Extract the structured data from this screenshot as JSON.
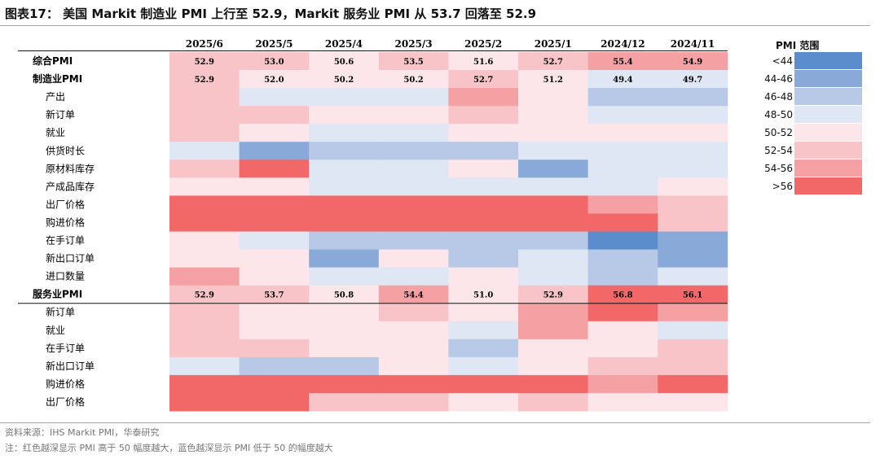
{
  "title": "图表17：  美国 Markit 制造业 PMI 上行至 52.9，Markit 服务业 PMI 从 53.7 回落至 52.9",
  "legend": {
    "title": "PMI 范围",
    "items": [
      {
        "label": "<44",
        "color": "#5b8ccb"
      },
      {
        "label": "44-46",
        "color": "#89a9d9"
      },
      {
        "label": "46-48",
        "color": "#b7c9e6"
      },
      {
        "label": "48-50",
        "color": "#dfe6f4"
      },
      {
        "label": "50-52",
        "color": "#fde6ea"
      },
      {
        "label": "52-54",
        "color": "#f9c4c8"
      },
      {
        "label": "54-56",
        "color": "#f5a1a4"
      },
      {
        "label": ">56",
        "color": "#f26868"
      }
    ]
  },
  "chart_data": {
    "type": "heatmap",
    "columns": [
      "2025/6",
      "2025/5",
      "2025/4",
      "2025/3",
      "2025/2",
      "2025/1",
      "2024/12",
      "2024/11"
    ],
    "rows": [
      {
        "label": "综合PMI",
        "bold": true,
        "values": [
          "52.9",
          "53.0",
          "50.6",
          "53.5",
          "51.6",
          "52.7",
          "55.4",
          "54.9"
        ],
        "bands": [
          5,
          5,
          4,
          5,
          4,
          5,
          6,
          6
        ]
      },
      {
        "label": "制造业PMI",
        "bold": true,
        "values": [
          "52.9",
          "52.0",
          "50.2",
          "50.2",
          "52.7",
          "51.2",
          "49.4",
          "49.7"
        ],
        "bands": [
          5,
          4,
          4,
          4,
          5,
          4,
          3,
          3
        ]
      },
      {
        "label": "产出",
        "bold": false,
        "values": [],
        "bands": [
          5,
          3,
          3,
          3,
          6,
          4,
          2,
          2
        ]
      },
      {
        "label": "新订单",
        "bold": false,
        "values": [],
        "bands": [
          5,
          5,
          4,
          4,
          5,
          4,
          3,
          3
        ]
      },
      {
        "label": "就业",
        "bold": false,
        "values": [],
        "bands": [
          5,
          4,
          3,
          3,
          4,
          4,
          4,
          4
        ]
      },
      {
        "label": "供货时长",
        "bold": false,
        "values": [],
        "bands": [
          3,
          1,
          2,
          2,
          2,
          3,
          3,
          3
        ]
      },
      {
        "label": "原材料库存",
        "bold": false,
        "values": [],
        "bands": [
          5,
          7,
          3,
          3,
          4,
          1,
          3,
          3
        ]
      },
      {
        "label": "产成品库存",
        "bold": false,
        "values": [],
        "bands": [
          4,
          4,
          3,
          3,
          3,
          3,
          3,
          4
        ]
      },
      {
        "label": "出厂价格",
        "bold": false,
        "values": [],
        "bands": [
          7,
          7,
          7,
          7,
          7,
          7,
          6,
          5
        ]
      },
      {
        "label": "购进价格",
        "bold": false,
        "values": [],
        "bands": [
          7,
          7,
          7,
          7,
          7,
          7,
          7,
          5
        ]
      },
      {
        "label": "在手订单",
        "bold": false,
        "values": [],
        "bands": [
          4,
          3,
          2,
          2,
          2,
          2,
          0,
          1
        ]
      },
      {
        "label": "新出口订单",
        "bold": false,
        "values": [],
        "bands": [
          4,
          4,
          1,
          4,
          2,
          3,
          2,
          1
        ]
      },
      {
        "label": "进口数量",
        "bold": false,
        "values": [],
        "bands": [
          6,
          4,
          3,
          3,
          4,
          3,
          2,
          3
        ]
      },
      {
        "label": "服务业PMI",
        "bold": true,
        "values": [
          "52.9",
          "53.7",
          "50.8",
          "54.4",
          "51.0",
          "52.9",
          "56.8",
          "56.1"
        ],
        "bands": [
          5,
          5,
          4,
          6,
          4,
          5,
          7,
          7
        ]
      },
      {
        "label": "新订单",
        "bold": false,
        "values": [],
        "bands": [
          5,
          4,
          4,
          5,
          4,
          6,
          7,
          6
        ]
      },
      {
        "label": "就业",
        "bold": false,
        "values": [],
        "bands": [
          5,
          4,
          4,
          4,
          3,
          6,
          4,
          3
        ]
      },
      {
        "label": "在手订单",
        "bold": false,
        "values": [],
        "bands": [
          5,
          5,
          4,
          4,
          2,
          4,
          4,
          5
        ]
      },
      {
        "label": "新出口订单",
        "bold": false,
        "values": [],
        "bands": [
          3,
          2,
          2,
          4,
          3,
          4,
          5,
          5
        ]
      },
      {
        "label": "购进价格",
        "bold": false,
        "values": [],
        "bands": [
          7,
          7,
          7,
          7,
          7,
          7,
          6,
          7
        ]
      },
      {
        "label": "出厂价格",
        "bold": false,
        "values": [],
        "bands": [
          7,
          7,
          5,
          5,
          4,
          5,
          4,
          4
        ]
      }
    ]
  },
  "source": "资料来源：IHS Markit PMI，华泰研究",
  "note": "注：红色越深显示 PMI 高于 50 幅度越大，蓝色越深显示 PMI 低于 50 的幅度越大"
}
